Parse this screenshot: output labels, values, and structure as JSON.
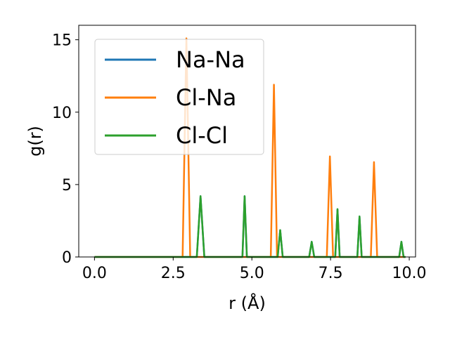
{
  "chart_data": {
    "type": "line",
    "title": "",
    "xlabel": "r (Å)",
    "ylabel": "g(r)",
    "xlim": [
      -0.5,
      10.2
    ],
    "ylim": [
      0,
      16
    ],
    "x_ticks": [
      0.0,
      2.5,
      5.0,
      7.5,
      10.0
    ],
    "x_tick_labels": [
      "0.0",
      "2.5",
      "5.0",
      "7.5",
      "10.0"
    ],
    "y_ticks": [
      0,
      5,
      10,
      15
    ],
    "y_tick_labels": [
      "0",
      "5",
      "10",
      "15"
    ],
    "grid": false,
    "legend": {
      "position": "upper-left"
    },
    "series": [
      {
        "name": "Na-Na",
        "color": "#1f77b4",
        "x": [
          0.0,
          3.25,
          3.37,
          3.49,
          4.7,
          4.77,
          4.84,
          4.91,
          5.82,
          5.9,
          5.98,
          6.82,
          6.9,
          6.98,
          7.65,
          7.72,
          7.79,
          8.35,
          8.42,
          8.49,
          9.68,
          9.75,
          9.82,
          9.88
        ],
        "y": [
          0,
          0,
          4.2,
          0,
          0,
          4.2,
          0,
          0,
          0,
          1.85,
          0,
          0,
          1.05,
          0,
          0,
          3.3,
          0,
          0,
          2.8,
          0,
          0,
          1.05,
          0,
          0
        ]
      },
      {
        "name": "Cl-Na",
        "color": "#ff7f0e",
        "x": [
          0.0,
          2.8,
          2.92,
          3.04,
          5.6,
          5.7,
          5.8,
          7.38,
          7.48,
          7.58,
          8.78,
          8.88,
          8.98,
          9.88
        ],
        "y": [
          0,
          0,
          15.1,
          0,
          0,
          11.9,
          0,
          0,
          6.95,
          0,
          0,
          6.55,
          0,
          0
        ]
      },
      {
        "name": "Cl-Cl",
        "color": "#2ca02c",
        "x": [
          0.0,
          3.25,
          3.37,
          3.49,
          4.7,
          4.77,
          4.84,
          4.91,
          5.82,
          5.9,
          5.98,
          6.82,
          6.9,
          6.98,
          7.65,
          7.72,
          7.79,
          8.35,
          8.42,
          8.49,
          9.68,
          9.75,
          9.82,
          9.88
        ],
        "y": [
          0,
          0,
          4.2,
          0,
          0,
          4.2,
          0,
          0,
          0,
          1.85,
          0,
          0,
          1.05,
          0,
          0,
          3.3,
          0,
          0,
          2.8,
          0,
          0,
          1.05,
          0,
          0
        ]
      }
    ]
  }
}
